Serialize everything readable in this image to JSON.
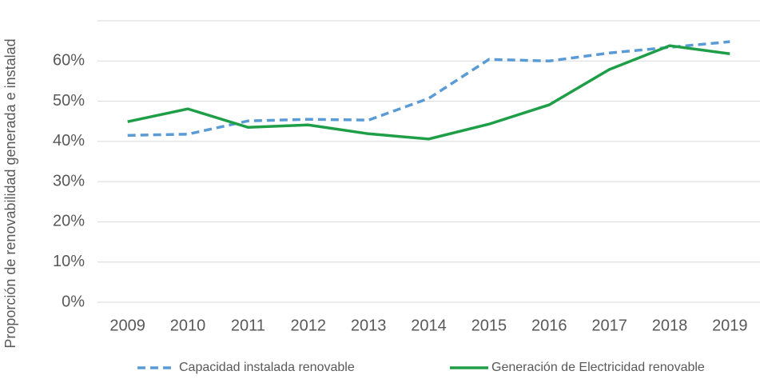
{
  "chart_data": {
    "type": "line",
    "y_label": "Proporción de renovabilidad generada e instalad",
    "categories": [
      "2009",
      "2010",
      "2011",
      "2012",
      "2013",
      "2014",
      "2015",
      "2016",
      "2017",
      "2018",
      "2019"
    ],
    "series": [
      {
        "name": "Capacidad instalada renovable",
        "color": "#5b9bd5",
        "dashed": true,
        "values": [
          41.5,
          41.8,
          45.1,
          45.5,
          45.3,
          50.7,
          60.4,
          60.0,
          62.0,
          63.4,
          64.8
        ]
      },
      {
        "name": "Generación de Electricidad renovable",
        "color": "#1f9e48",
        "dashed": false,
        "values": [
          44.9,
          48.1,
          43.5,
          44.1,
          41.9,
          40.6,
          44.3,
          49.1,
          57.9,
          63.8,
          61.8
        ]
      }
    ],
    "ylim": [
      0,
      70
    ],
    "yticks": [
      {
        "value": 0,
        "label": "0%"
      },
      {
        "value": 10,
        "label": "10%"
      },
      {
        "value": 20,
        "label": "20%"
      },
      {
        "value": 30,
        "label": "30%"
      },
      {
        "value": 40,
        "label": "40%"
      },
      {
        "value": 50,
        "label": "50%"
      },
      {
        "value": 60,
        "label": "60%"
      }
    ],
    "grid": true,
    "legend": "bottom"
  }
}
